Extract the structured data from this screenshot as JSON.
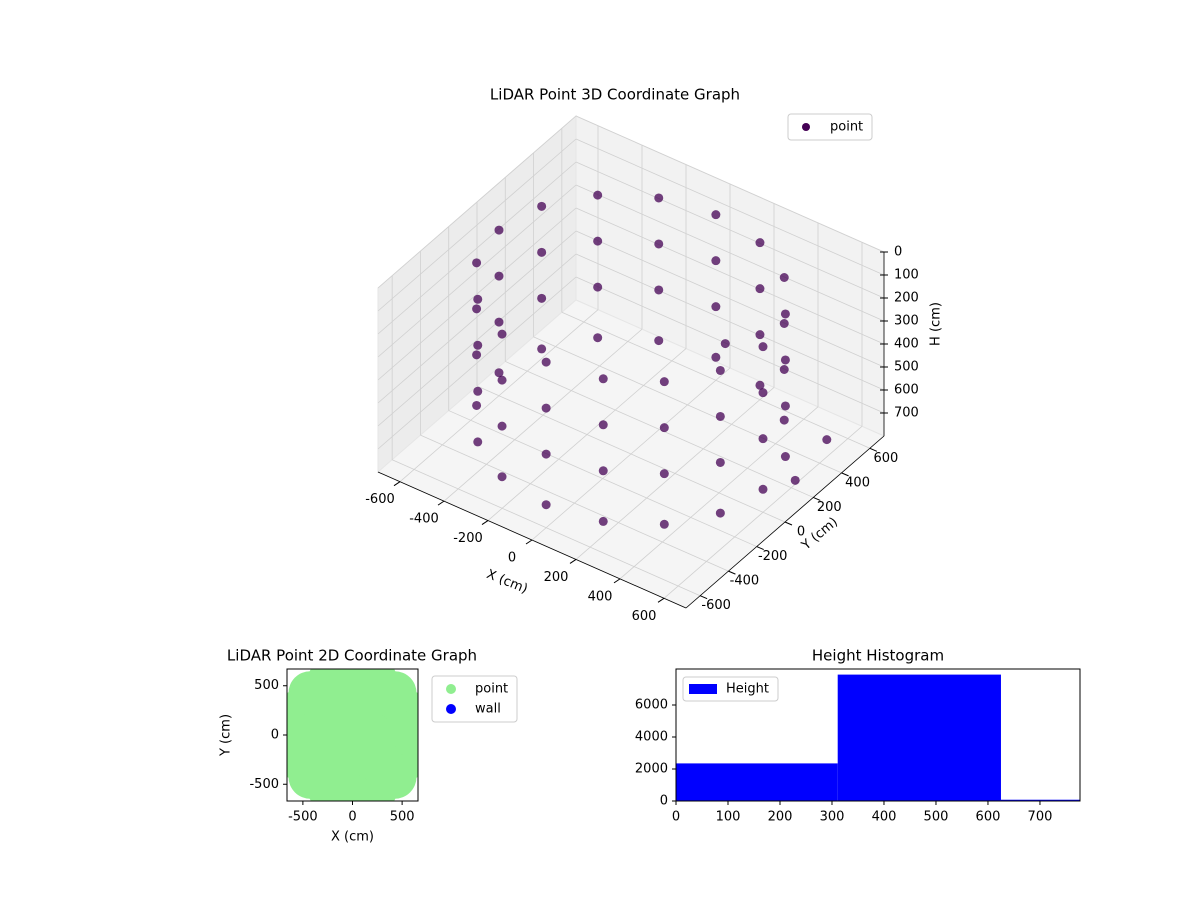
{
  "chart_data": [
    {
      "type": "scatter3d",
      "title": "LiDAR Point 3D Coordinate Graph",
      "x_label": "X (cm)",
      "y_label": "Y (cm)",
      "z_label": "H (cm)",
      "xlim": [
        -700,
        700
      ],
      "ylim": [
        -700,
        700
      ],
      "zlim": [
        800,
        0
      ],
      "xticks": [
        -600,
        -400,
        -200,
        0,
        200,
        400,
        600
      ],
      "yticks": [
        -600,
        -400,
        -200,
        0,
        200,
        400,
        600
      ],
      "zticks": [
        0,
        100,
        200,
        300,
        400,
        500,
        600,
        700
      ],
      "legend": "upper right",
      "grid": true,
      "series": [
        {
          "name": "point",
          "color": "#440154",
          "x": [
            600,
            554,
            424,
            230,
            0,
            -230,
            -424,
            -554,
            -600,
            -554,
            -424,
            -230,
            0,
            230,
            424,
            554,
            600,
            554,
            424,
            230,
            0,
            -230,
            -424,
            -554,
            -600,
            -554,
            -424,
            -230,
            0,
            230,
            424,
            554,
            600,
            554,
            424,
            230,
            0,
            -230,
            -424,
            -554,
            -600,
            -554,
            -424,
            -230,
            0,
            230,
            424,
            554,
            600,
            554,
            424,
            230,
            0,
            -230,
            -424,
            -554,
            -600,
            -554,
            -424,
            -230,
            0,
            230,
            424,
            554,
            650,
            620,
            300
          ],
          "y": [
            0,
            230,
            424,
            554,
            600,
            554,
            424,
            230,
            0,
            -230,
            -424,
            -554,
            -600,
            -554,
            -424,
            -230,
            0,
            230,
            424,
            554,
            600,
            554,
            424,
            230,
            0,
            -230,
            -424,
            -554,
            -600,
            -554,
            -424,
            -230,
            0,
            230,
            424,
            554,
            600,
            554,
            424,
            230,
            0,
            -230,
            -424,
            -554,
            -600,
            -554,
            -424,
            -230,
            0,
            230,
            424,
            554,
            600,
            554,
            424,
            230,
            0,
            -230,
            -424,
            -554,
            -600,
            -554,
            -424,
            -230,
            150,
            420,
            200
          ],
          "z": [
            80,
            80,
            80,
            80,
            80,
            80,
            80,
            80,
            80,
            80,
            80,
            80,
            80,
            80,
            80,
            80,
            280,
            280,
            280,
            280,
            280,
            280,
            280,
            280,
            280,
            280,
            280,
            280,
            280,
            280,
            280,
            280,
            480,
            480,
            480,
            480,
            480,
            480,
            480,
            480,
            480,
            480,
            480,
            480,
            480,
            480,
            480,
            480,
            700,
            700,
            700,
            700,
            700,
            700,
            700,
            700,
            700,
            700,
            700,
            700,
            700,
            700,
            700,
            700,
            720,
            700,
            300
          ]
        }
      ]
    },
    {
      "type": "scatter",
      "title": "LiDAR Point 2D Coordinate Graph",
      "x_label": "X (cm)",
      "y_label": "Y (cm)",
      "xlim": [
        -660,
        660
      ],
      "ylim": [
        -670,
        670
      ],
      "xticks": [
        -500,
        0,
        500
      ],
      "yticks": [
        -500,
        0,
        500
      ],
      "legend": "outside right",
      "series": [
        {
          "name": "point",
          "color": "#90ee90",
          "x": [
            600,
            554,
            424,
            230,
            0,
            -230,
            -424,
            -554,
            -600,
            -554,
            -424,
            -230,
            0,
            230,
            424,
            554,
            400,
            283,
            0,
            -283,
            -400,
            -283,
            0,
            283,
            200,
            0,
            -200,
            0,
            0
          ],
          "y": [
            0,
            230,
            424,
            554,
            600,
            554,
            424,
            230,
            0,
            -230,
            -424,
            -554,
            -600,
            -554,
            -424,
            -230,
            0,
            283,
            400,
            283,
            0,
            -283,
            -400,
            -283,
            0,
            200,
            0,
            -200,
            0
          ]
        },
        {
          "name": "wall",
          "color": "#0000ff",
          "x": [],
          "y": []
        }
      ]
    },
    {
      "type": "histogram",
      "title": "Height Histogram",
      "bins": [
        0,
        311,
        625,
        777
      ],
      "values": [
        2350,
        7900,
        80
      ],
      "xlim": [
        0,
        777
      ],
      "ylim": [
        0,
        8250
      ],
      "xticks": [
        0,
        100,
        200,
        300,
        400,
        500,
        600,
        700
      ],
      "yticks": [
        0,
        2000,
        4000,
        6000
      ],
      "legend": "upper left",
      "series_name": "Height",
      "color": "#0000ff"
    }
  ]
}
